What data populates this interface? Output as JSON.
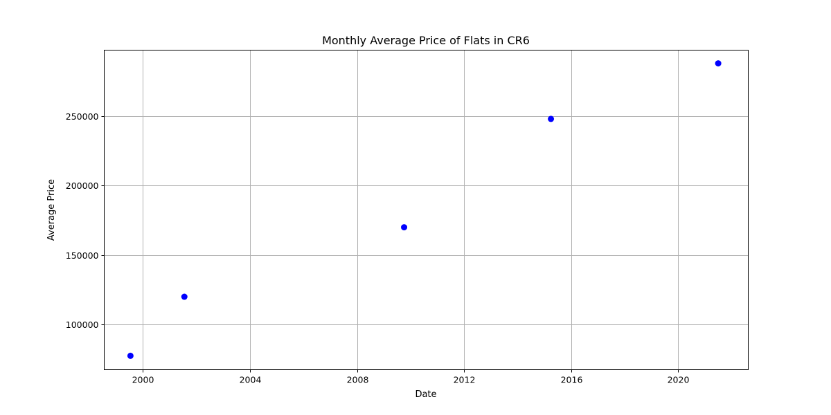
{
  "chart_data": {
    "type": "scatter",
    "title": "Monthly Average Price of Flats in CR6",
    "xlabel": "Date",
    "ylabel": "Average Price",
    "x_type": "date",
    "xlim": [
      "1998-07-22",
      "2022-08-15"
    ],
    "ylim": [
      67500,
      297500
    ],
    "xticks": [
      "2000",
      "2004",
      "2008",
      "2012",
      "2016",
      "2020"
    ],
    "yticks": [
      100000,
      150000,
      200000,
      250000
    ],
    "ytick_labels": [
      "100000",
      "150000",
      "200000",
      "250000"
    ],
    "grid": true,
    "legend": "none",
    "marker_color": "#0000ff",
    "series": [
      {
        "x": [
          "1999-07-15",
          "2001-07-20",
          "2009-10-05",
          "2015-04-01",
          "2021-07-01"
        ],
        "y": [
          77500,
          120000,
          170000,
          248000,
          288000
        ]
      }
    ]
  }
}
